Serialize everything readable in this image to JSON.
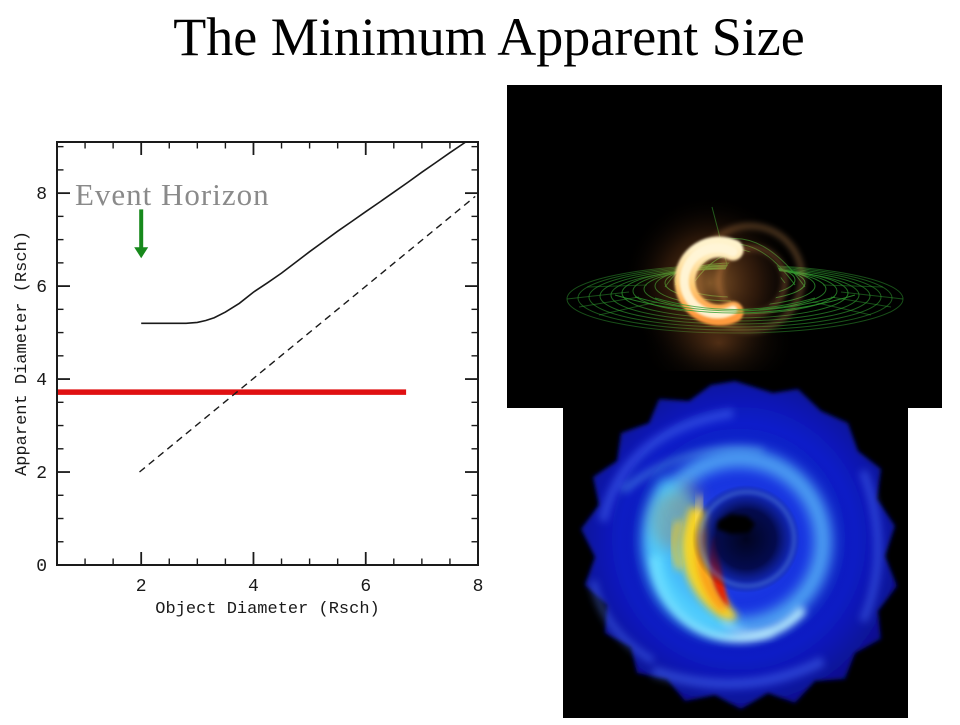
{
  "slide": {
    "title": "The Minimum Apparent Size",
    "background": "#ffffff"
  },
  "chart_data": {
    "type": "line",
    "title": "",
    "xlabel": "Object Diameter (Rsch)",
    "ylabel": "Apparent Diameter (Rsch)",
    "xlim": [
      0.5,
      8.0
    ],
    "ylim": [
      0,
      9.1
    ],
    "x_major_ticks": [
      2,
      4,
      6,
      8
    ],
    "y_major_ticks": [
      0,
      2,
      4,
      6,
      8
    ],
    "minor_tick_step": 0.5,
    "grid": false,
    "frame_color": "#1a1a1a",
    "tick_label_color": "#1a1a1a",
    "series": [
      {
        "name": "apparent-diameter-curve",
        "style": "solid",
        "color": "#1a1a1a",
        "width": 1.6,
        "points": [
          [
            2.0,
            5.2
          ],
          [
            2.4,
            5.2
          ],
          [
            2.8,
            5.2
          ],
          [
            3.0,
            5.22
          ],
          [
            3.15,
            5.26
          ],
          [
            3.3,
            5.32
          ],
          [
            3.5,
            5.44
          ],
          [
            3.75,
            5.63
          ],
          [
            4.0,
            5.87
          ],
          [
            4.25,
            6.07
          ],
          [
            4.5,
            6.28
          ],
          [
            4.75,
            6.51
          ],
          [
            5.0,
            6.74
          ],
          [
            5.25,
            6.96
          ],
          [
            5.5,
            7.18
          ],
          [
            5.75,
            7.39
          ],
          [
            6.0,
            7.6
          ],
          [
            6.25,
            7.81
          ],
          [
            6.5,
            8.02
          ],
          [
            6.75,
            8.23
          ],
          [
            7.0,
            8.45
          ],
          [
            7.25,
            8.66
          ],
          [
            7.5,
            8.87
          ],
          [
            7.78,
            9.1
          ]
        ]
      },
      {
        "name": "object-diameter-identity-line",
        "style": "dashed",
        "color": "#1a1a1a",
        "width": 1.4,
        "points": [
          [
            1.97,
            2.0
          ],
          [
            7.95,
            7.93
          ]
        ]
      },
      {
        "name": "minimum-apparent-size-line",
        "style": "solid",
        "color": "#e01012",
        "width": 5.5,
        "points": [
          [
            0.5,
            3.72
          ],
          [
            6.72,
            3.72
          ]
        ]
      }
    ],
    "annotation": {
      "text": "Event Horizon",
      "color": "#8a8a8a",
      "font_px": 31,
      "text_x": 0.82,
      "text_y": 7.74,
      "arrow": {
        "color": "#17891c",
        "x": 2.0,
        "y_from": 7.65,
        "y_to": 6.6
      }
    }
  },
  "figures": {
    "top_right": {
      "description": "black-hole-gravitational-lensing-render",
      "background": "#000000",
      "grid_green": "#2f9b2f",
      "crescent_color": "#ffe9b0",
      "glow_color": "#ff9a3e"
    },
    "bottom_right": {
      "description": "accretion-disk-simulation-render",
      "background": "#000000",
      "disk_blue": "#0f22d8",
      "ring_cyan": "#7fe4ff",
      "hotspot_yellow": "#ffd81f",
      "hotspot_red": "#e62100"
    }
  }
}
